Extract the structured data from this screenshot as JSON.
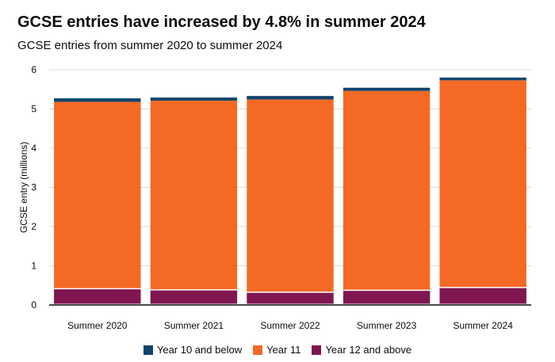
{
  "header": {
    "title": "GCSE entries have increased by 4.8% in summer 2024",
    "subtitle": "GCSE entries from summer 2020 to summer 2024"
  },
  "chart_data": {
    "type": "bar",
    "stacked": true,
    "categories": [
      "Summer 2020",
      "Summer 2021",
      "Summer 2022",
      "Summer 2023",
      "Summer 2024"
    ],
    "series": [
      {
        "name": "Year 12 and above",
        "color": "#801650",
        "values": [
          0.4,
          0.37,
          0.31,
          0.36,
          0.43
        ]
      },
      {
        "name": "Year 11",
        "color": "#f46a25",
        "values": [
          4.78,
          4.84,
          4.93,
          5.1,
          5.3
        ]
      },
      {
        "name": "Year 10 and below",
        "color": "#12436d",
        "values": [
          0.09,
          0.08,
          0.09,
          0.08,
          0.07
        ]
      }
    ],
    "ylabel": "GCSE entry (millions)",
    "xlabel": "",
    "ylim": [
      0,
      6
    ],
    "yticks": [
      0,
      1,
      2,
      3,
      4,
      5,
      6
    ],
    "grid": true,
    "legend_position": "bottom",
    "legend_order": [
      "Year 10 and below",
      "Year 11",
      "Year 12 and above"
    ]
  }
}
